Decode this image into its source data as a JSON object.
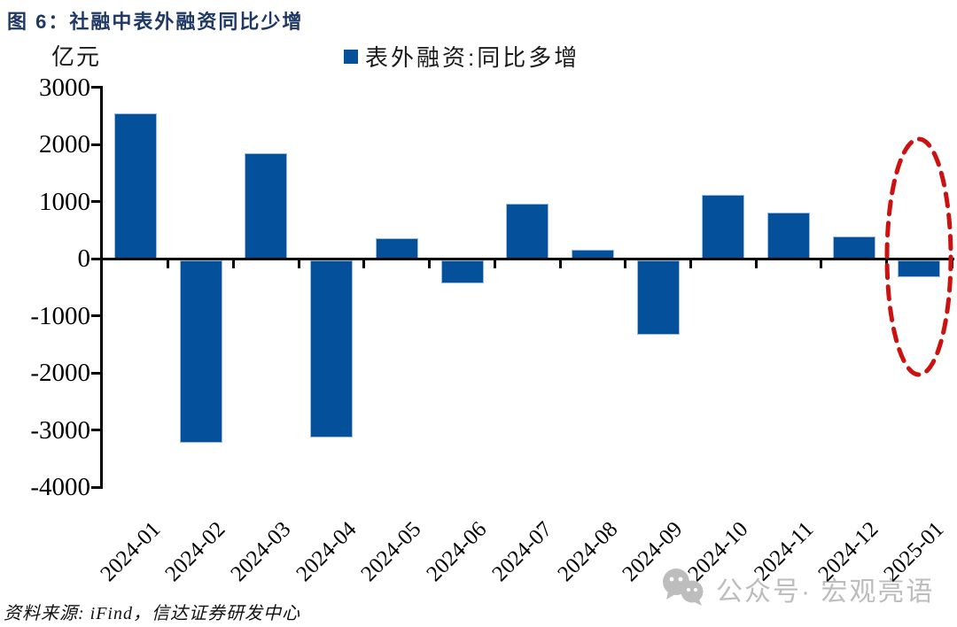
{
  "title": "图 6：社融中表外融资同比少增",
  "y_axis_unit": "亿元",
  "legend": {
    "label": "表外融资:同比多增"
  },
  "source_note": "资料来源: iFind，信达证券研发中心",
  "watermark": {
    "icon": "wechat-icon",
    "text": "公众号· 宏观亮语"
  },
  "colors": {
    "bar_fill": "#05509B",
    "bar_border": "#9DBBDF",
    "title_navy": "#1F3864",
    "axis_black": "#000000",
    "highlight_red": "#CC1111",
    "watermark_gray": "#BDBDBD"
  },
  "chart_data": {
    "type": "bar",
    "title": "图 6：社融中表外融资同比少增",
    "series_name": "表外融资:同比多增",
    "ylabel": "亿元",
    "xlabel": "",
    "categories": [
      "2024-01",
      "2024-02",
      "2024-03",
      "2024-04",
      "2024-05",
      "2024-06",
      "2024-07",
      "2024-08",
      "2024-09",
      "2024-10",
      "2024-11",
      "2024-12",
      "2025-01"
    ],
    "values": [
      2550,
      -3200,
      1850,
      -3100,
      350,
      -400,
      960,
      150,
      -1310,
      1120,
      810,
      380,
      -290
    ],
    "ylim": [
      -4000,
      3000
    ],
    "yticks": [
      3000,
      2000,
      1000,
      0,
      -1000,
      -2000,
      -3000,
      -4000
    ],
    "grid": false,
    "legend_position": "top-center",
    "x_tick_label_rotation": -45,
    "highlight_category": "2025-01",
    "highlight_style": "red-dashed-ellipse"
  }
}
